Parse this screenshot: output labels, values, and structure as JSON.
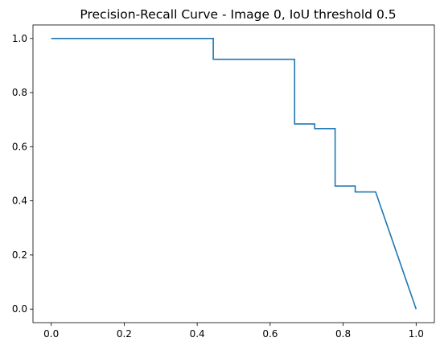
{
  "chart_data": {
    "type": "line",
    "title": "Precision-Recall Curve - Image 0, IoU threshold 0.5",
    "xlabel": "",
    "ylabel": "",
    "xlim": [
      -0.05,
      1.05
    ],
    "ylim": [
      -0.05,
      1.05
    ],
    "grid": false,
    "x_ticks": [
      "0.0",
      "0.2",
      "0.4",
      "0.6",
      "0.8",
      "1.0"
    ],
    "y_ticks": [
      "0.0",
      "0.2",
      "0.4",
      "0.6",
      "0.8",
      "1.0"
    ],
    "series": [
      {
        "color": "#1f77b4",
        "x": [
          0.0,
          0.444,
          0.444,
          0.667,
          0.667,
          0.722,
          0.722,
          0.778,
          0.778,
          0.833,
          0.833,
          0.889,
          1.0
        ],
        "y": [
          1.0,
          1.0,
          0.923,
          0.923,
          0.684,
          0.684,
          0.667,
          0.667,
          0.455,
          0.455,
          0.433,
          0.433,
          0.0
        ]
      }
    ]
  }
}
